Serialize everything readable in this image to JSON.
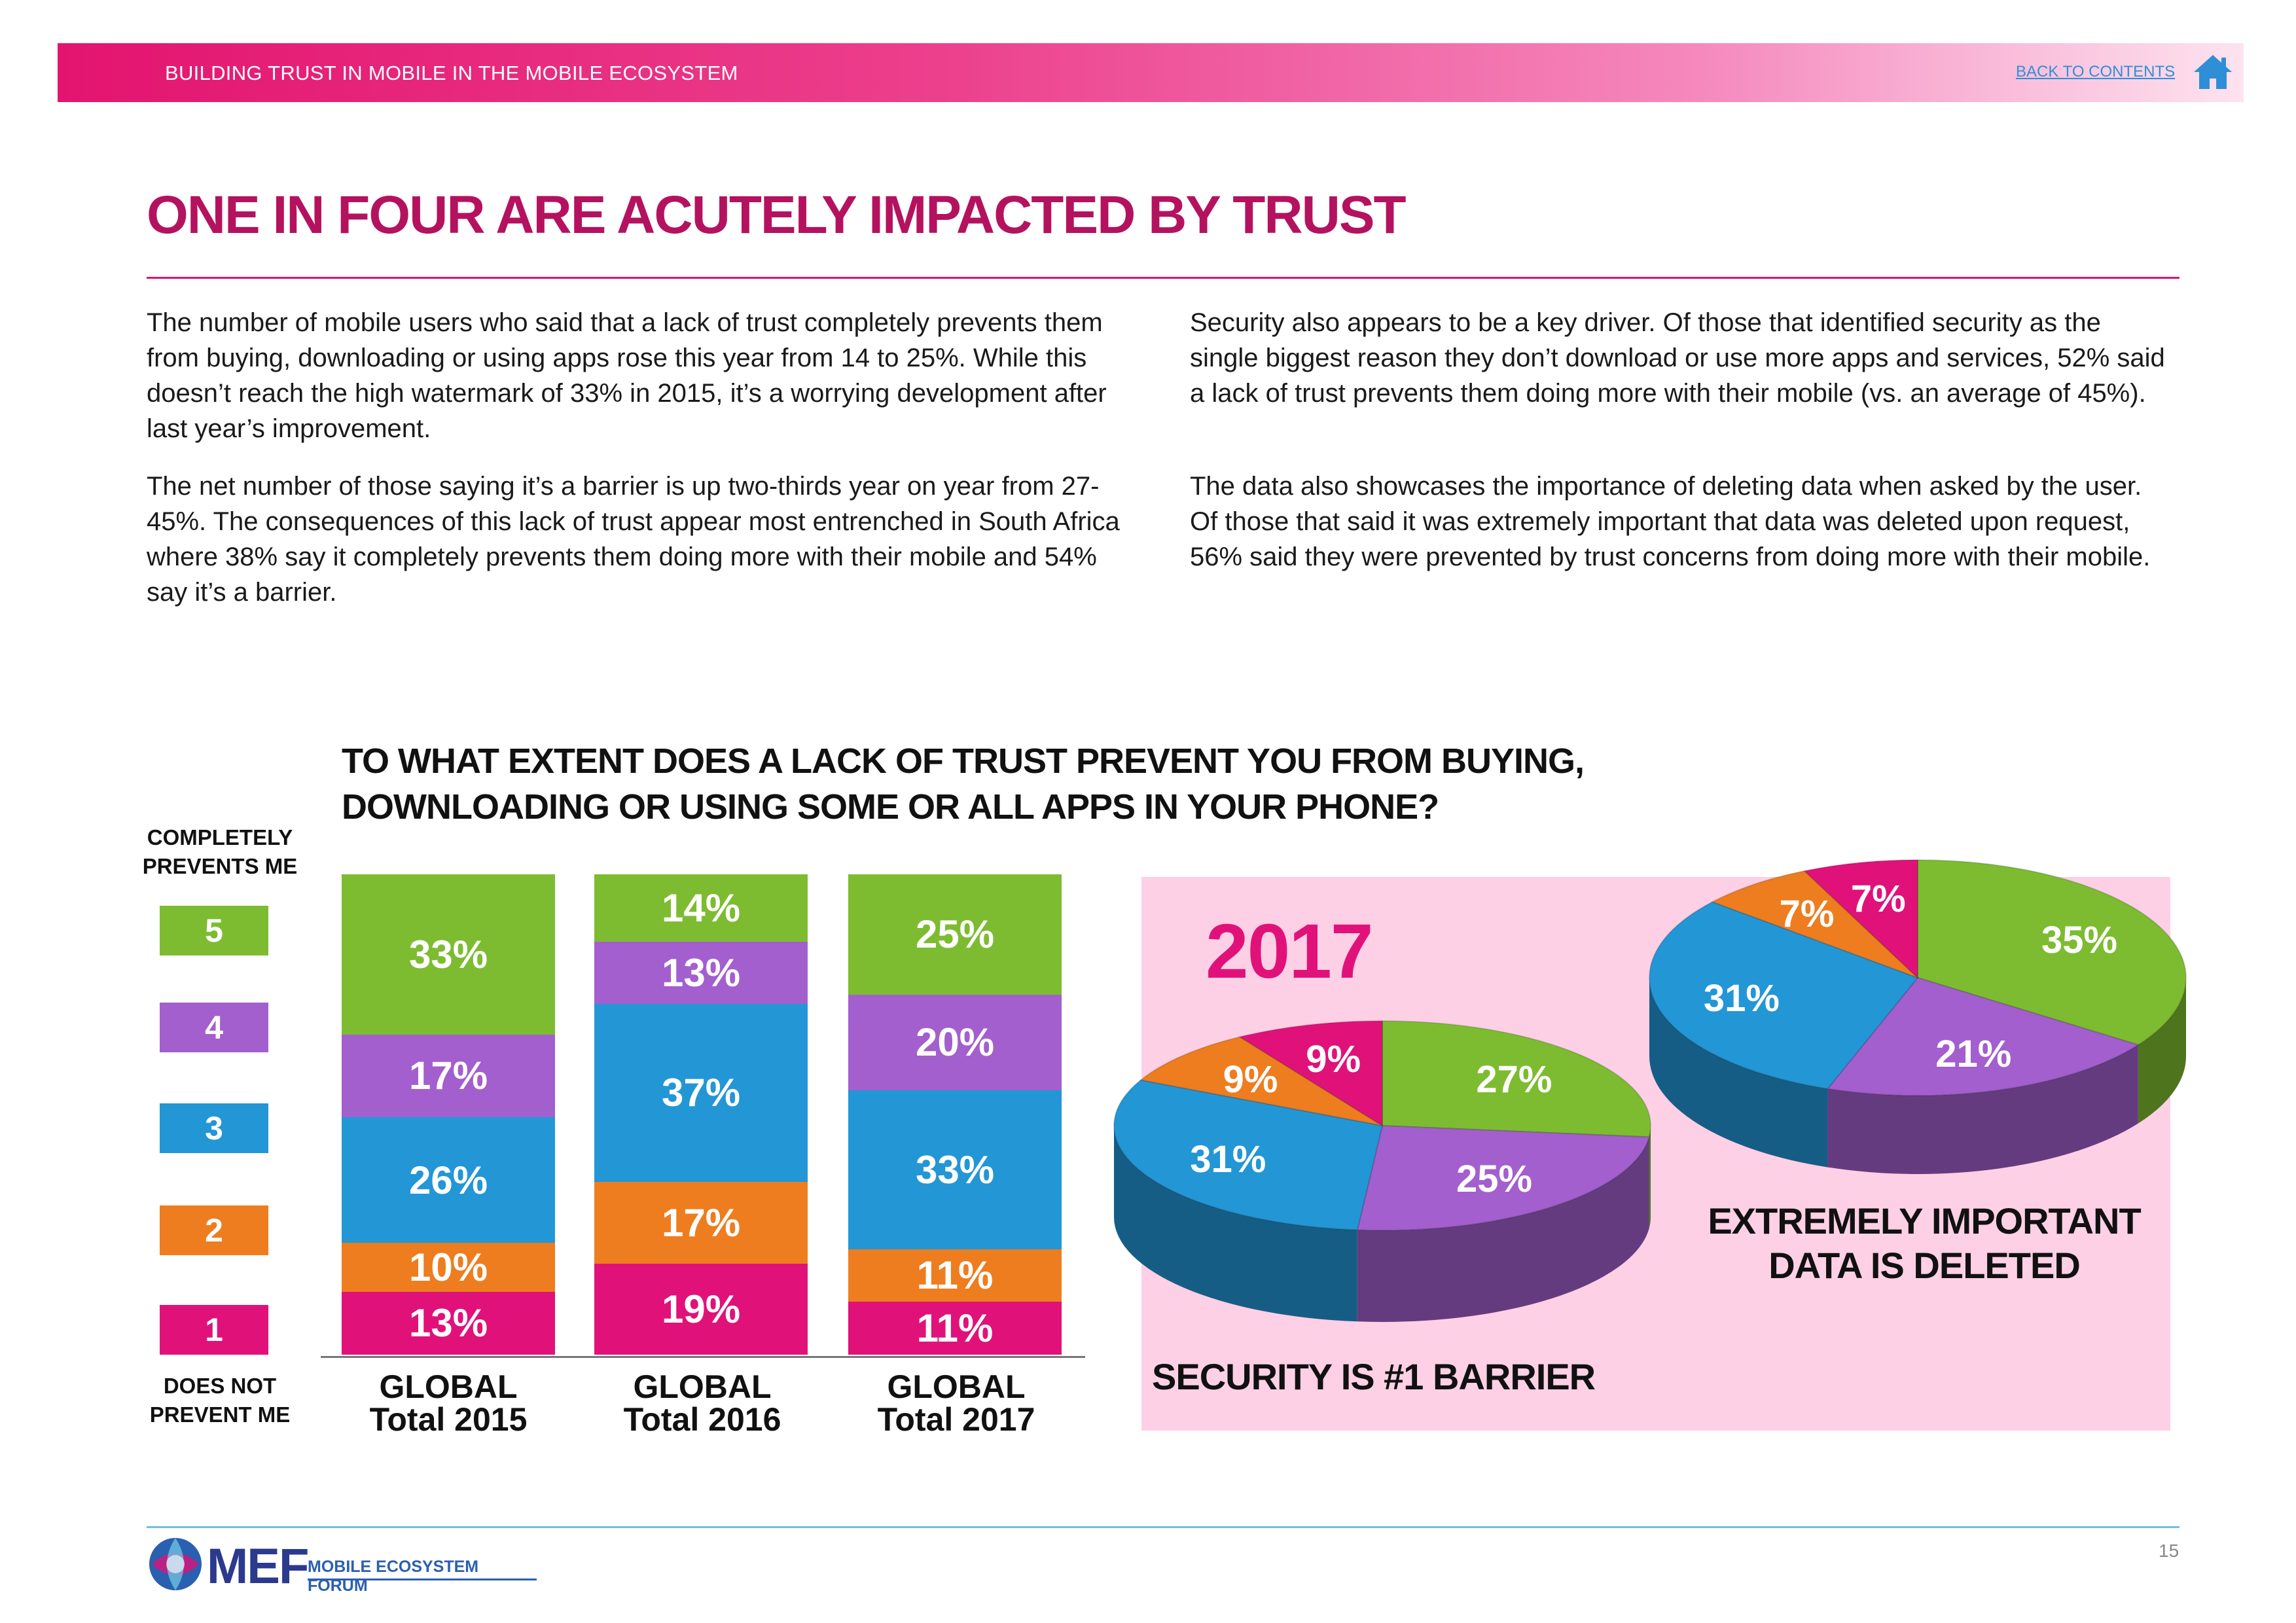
{
  "header": {
    "doc_title": "BUILDING TRUST IN MOBILE IN THE MOBILE ECOSYSTEM",
    "back_link": "BACK TO CONTENTS",
    "home_icon": "home-icon"
  },
  "title": "ONE IN FOUR ARE ACUTELY IMPACTED BY TRUST",
  "paragraphs": [
    "The number of mobile users who said that a lack of trust completely prevents them from buying, downloading or using apps rose this year from 14 to 25%. While this doesn’t reach the high watermark of 33% in 2015, it’s a worrying development after last year’s improvement.",
    "The net number of those saying it’s a barrier is up two-thirds year on year from 27-45%. The consequences of this lack of trust appear most entrenched in South Africa where 38% say it completely prevents them doing more with their mobile and 54% say it’s a barrier.",
    "Security also appears to be a key driver. Of those that identified security as the single biggest reason they don’t download or use more apps and services, 52% said a lack of trust prevents them doing more with their mobile (vs. an average of 45%).",
    "The data also showcases the importance of deleting data when asked by the user. Of those that said it was extremely important that data was deleted upon request, 56% said they were prevented by trust concerns from doing more with their mobile."
  ],
  "colors": {
    "level1": "#e0127a",
    "level2": "#ee7d1f",
    "level3": "#2396d6",
    "level4": "#a35fce",
    "level5": "#7dbc31",
    "accent": "#b4125f",
    "pie_bg": "#fdd0e5"
  },
  "chart_data": [
    {
      "type": "bar",
      "stacked": true,
      "title": "TO WHAT EXTENT DOES A LACK OF TRUST PREVENT YOU FROM BUYING,\nDOWNLOADING OR USING SOME OR ALL APPS IN YOUR PHONE?",
      "y_top_label": "COMPLETELY PREVENTS ME",
      "y_bottom_label": "DOES NOT PREVENT ME",
      "legend": [
        "1",
        "2",
        "3",
        "4",
        "5"
      ],
      "categories": [
        "GLOBAL Total 2015",
        "GLOBAL Total 2016",
        "GLOBAL Total 2017"
      ],
      "series": [
        {
          "name": "1",
          "values": [
            13,
            19,
            11
          ]
        },
        {
          "name": "2",
          "values": [
            10,
            17,
            11
          ]
        },
        {
          "name": "3",
          "values": [
            26,
            37,
            33
          ]
        },
        {
          "name": "4",
          "values": [
            17,
            13,
            20
          ]
        },
        {
          "name": "5",
          "values": [
            33,
            14,
            25
          ]
        }
      ],
      "labels": [
        [
          "13%",
          "19%",
          "11%"
        ],
        [
          "10%",
          "17%",
          "11%"
        ],
        [
          "26%",
          "37%",
          "33%"
        ],
        [
          "17%",
          "13%",
          "20%"
        ],
        [
          "33%",
          "14%",
          "25%"
        ]
      ]
    },
    {
      "type": "pie",
      "year": "2017",
      "title": "SECURITY IS #1 BARRIER",
      "slices": [
        {
          "name": "5",
          "value": 27,
          "label": "27%"
        },
        {
          "name": "4",
          "value": 25,
          "label": "25%"
        },
        {
          "name": "3",
          "value": 31,
          "label": "31%"
        },
        {
          "name": "2",
          "value": 9,
          "label": "9%"
        },
        {
          "name": "1",
          "value": 9,
          "label": "9%"
        }
      ]
    },
    {
      "type": "pie",
      "title": "EXTREMELY IMPORTANT DATA IS DELETED",
      "slices": [
        {
          "name": "5",
          "value": 35,
          "label": "35%"
        },
        {
          "name": "4",
          "value": 21,
          "label": "21%"
        },
        {
          "name": "3",
          "value": 31,
          "label": "31%"
        },
        {
          "name": "2",
          "value": 7,
          "label": "7%"
        },
        {
          "name": "1",
          "value": 7,
          "label": "7%"
        }
      ]
    }
  ],
  "footer": {
    "logo_text": "MEF",
    "logo_subtitle": "MOBILE ECOSYSTEM FORUM",
    "page_number": "15"
  }
}
